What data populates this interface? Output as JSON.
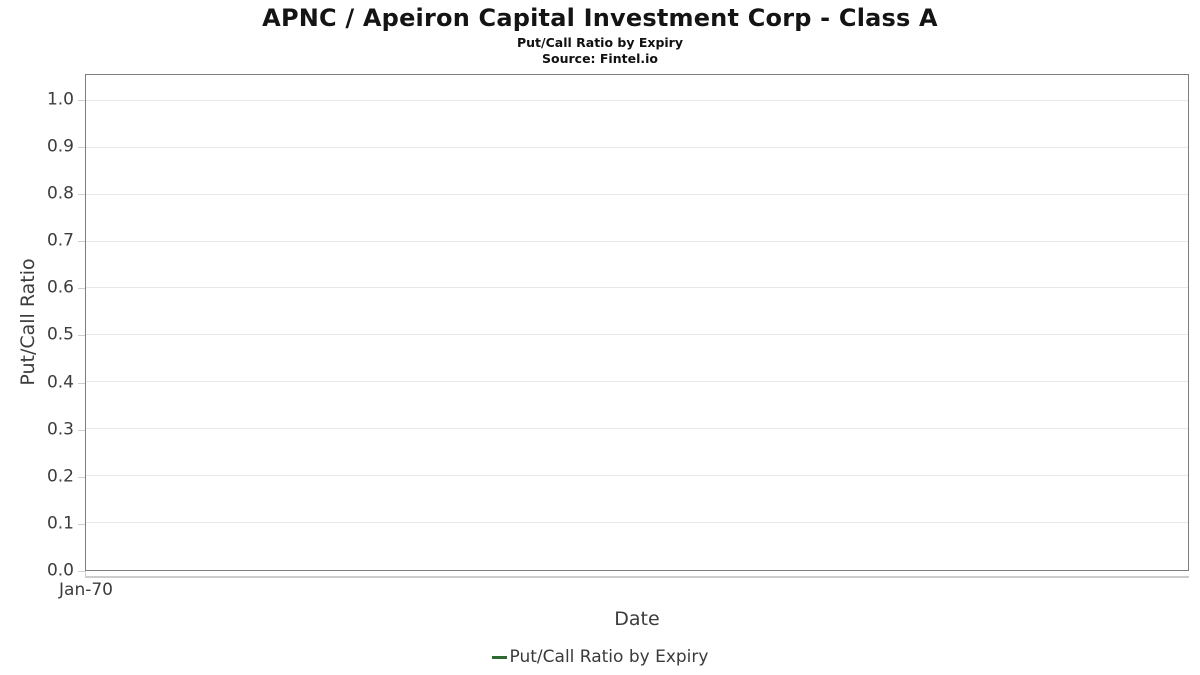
{
  "header": {
    "title": "APNC / Apeiron Capital Investment Corp - Class A",
    "subtitle": "Put/Call Ratio by Expiry",
    "source": "Source: Fintel.io"
  },
  "chart_data": {
    "type": "line",
    "title": "APNC / Apeiron Capital Investment Corp - Class A",
    "subtitle": "Put/Call Ratio by Expiry",
    "source": "Source: Fintel.io",
    "xlabel": "Date",
    "ylabel": "Put/Call Ratio",
    "x_ticks": [
      "Jan-70"
    ],
    "y_ticks": [
      0.0,
      0.1,
      0.2,
      0.3,
      0.4,
      0.5,
      0.6,
      0.7,
      0.8,
      0.9,
      1.0
    ],
    "ylim": [
      0,
      1.055
    ],
    "grid": "horizontal",
    "legend_position": "bottom",
    "series": [
      {
        "name": "Put/Call Ratio by Expiry",
        "color": "#2d6a32",
        "x": [],
        "values": []
      }
    ]
  },
  "colors": {
    "series_green": "#2d6a32",
    "plot_border": "#7d7d7d",
    "gridline": "#e8e8e8",
    "tick_text": "#3c3c3c",
    "title_text": "#141414"
  }
}
